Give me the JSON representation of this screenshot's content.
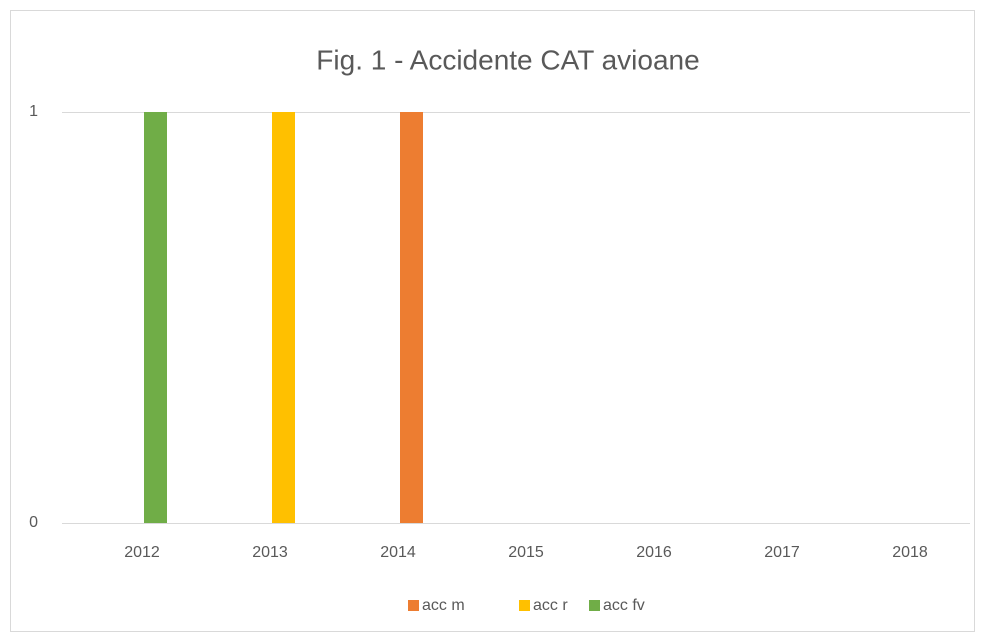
{
  "chart_data": {
    "type": "bar",
    "title": "Fig. 1 - Accidente CAT avioane",
    "categories": [
      "2012",
      "2013",
      "2014",
      "2015",
      "2016",
      "2017",
      "2018"
    ],
    "series": [
      {
        "name": "acc m",
        "color": "#ed7d31",
        "values": [
          0,
          0,
          1,
          0,
          0,
          0,
          0
        ]
      },
      {
        "name": "acc r",
        "color": "#ffc000",
        "values": [
          0,
          1,
          0,
          0,
          0,
          0,
          0
        ]
      },
      {
        "name": "acc fv",
        "color": "#70ad47",
        "values": [
          1,
          0,
          0,
          0,
          0,
          0,
          0
        ]
      }
    ],
    "ylim": [
      0,
      1
    ],
    "yticks": [
      0,
      1
    ],
    "grid": true,
    "legend": "bottom"
  }
}
